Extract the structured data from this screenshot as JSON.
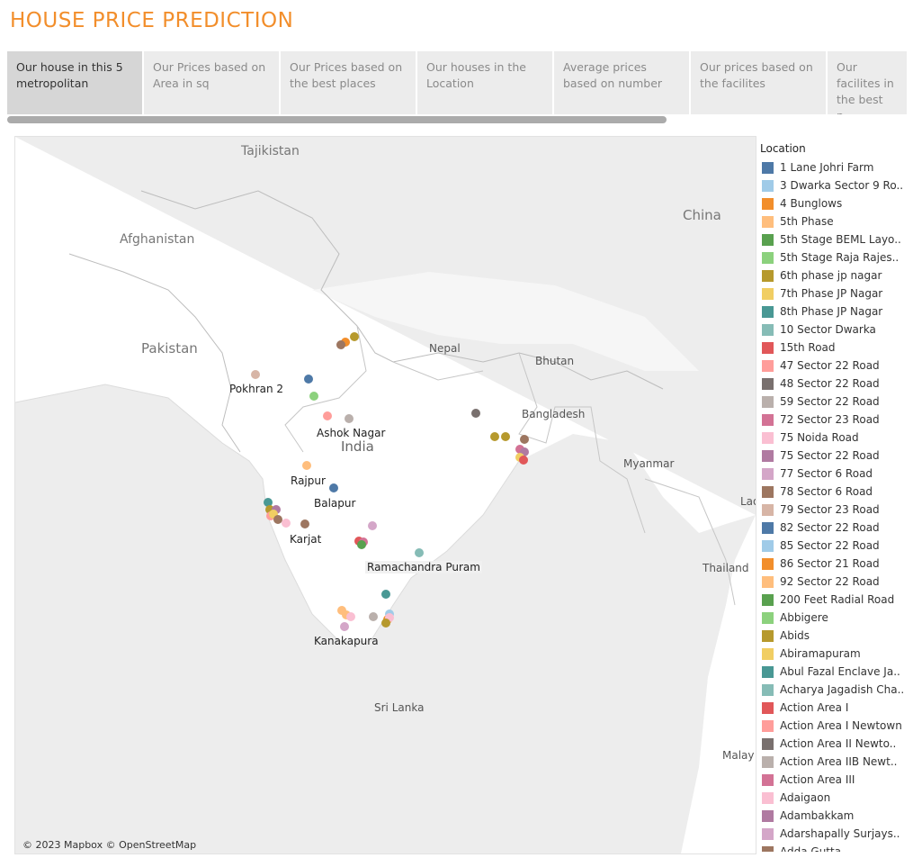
{
  "title": "HOUSE PRICE PREDICTION",
  "tabs": [
    {
      "label": "Our house in this 5 metropolitan",
      "active": true
    },
    {
      "label": "Our Prices based on Area in sq",
      "active": false
    },
    {
      "label": "Our Prices based on the best places",
      "active": false
    },
    {
      "label": "Our houses in the Location",
      "active": false
    },
    {
      "label": "Average prices based on number",
      "active": false
    },
    {
      "label": "Our prices based on the facilites",
      "active": false
    },
    {
      "label": "Our facilites in the best p...",
      "active": false
    }
  ],
  "map": {
    "countries": {
      "tajikistan": "Tajikistan",
      "afghanistan": "Afghanistan",
      "pakistan": "Pakistan",
      "china": "China",
      "nepal": "Nepal",
      "bhutan": "Bhutan",
      "bangladesh": "Bangladesh",
      "india": "India",
      "myanmar": "Myanmar",
      "thailand": "Thailand",
      "sri_lanka": "Sri Lanka",
      "lao": "Lao",
      "malay": "Malay"
    },
    "cities": {
      "pokhran": "Pokhran 2",
      "ashok_nagar": "Ashok Nagar",
      "rajpur": "Rajpur",
      "balapur": "Balapur",
      "karjat": "Karjat",
      "ramachandra_puram": "Ramachandra Puram",
      "kanakapura": "Kanakapura"
    },
    "attribution": "© 2023 Mapbox © OpenStreetMap"
  },
  "legend": {
    "title": "Location",
    "items": [
      {
        "label": "1 Lane Johri Farm",
        "color": "#4e79a7"
      },
      {
        "label": "3 Dwarka Sector 9 Ro..",
        "color": "#a0cbe8"
      },
      {
        "label": "4 Bunglows",
        "color": "#f28e2b"
      },
      {
        "label": "5th Phase",
        "color": "#ffbe7d"
      },
      {
        "label": "5th Stage BEML Layo..",
        "color": "#59a14f"
      },
      {
        "label": "5th Stage Raja Rajes..",
        "color": "#8cd17d"
      },
      {
        "label": "6th phase jp nagar",
        "color": "#b6992d"
      },
      {
        "label": "7th Phase JP Nagar",
        "color": "#f1ce63"
      },
      {
        "label": "8th Phase JP Nagar",
        "color": "#499894"
      },
      {
        "label": "10 Sector Dwarka",
        "color": "#86bcb6"
      },
      {
        "label": "15th Road",
        "color": "#e15759"
      },
      {
        "label": "47 Sector 22 Road",
        "color": "#ff9d9a"
      },
      {
        "label": "48 Sector 22 Road",
        "color": "#79706e"
      },
      {
        "label": "59 Sector 22 Road",
        "color": "#bab0ac"
      },
      {
        "label": "72 Sector 23 Road",
        "color": "#d37295"
      },
      {
        "label": "75 Noida Road",
        "color": "#fabfd2"
      },
      {
        "label": "75 Sector 22 Road",
        "color": "#b07aa1"
      },
      {
        "label": "77 Sector 6 Road",
        "color": "#d4a6c8"
      },
      {
        "label": "78 Sector 6 Road",
        "color": "#9d7660"
      },
      {
        "label": "79 Sector 23 Road",
        "color": "#d7b5a6"
      },
      {
        "label": "82 Sector 22 Road",
        "color": "#4e79a7"
      },
      {
        "label": "85 Sector 22 Road",
        "color": "#a0cbe8"
      },
      {
        "label": "86 Sector 21 Road",
        "color": "#f28e2b"
      },
      {
        "label": "92 Sector 22 Road",
        "color": "#ffbe7d"
      },
      {
        "label": "200 Feet Radial Road",
        "color": "#59a14f"
      },
      {
        "label": "Abbigere",
        "color": "#8cd17d"
      },
      {
        "label": "Abids",
        "color": "#b6992d"
      },
      {
        "label": "Abiramapuram",
        "color": "#f1ce63"
      },
      {
        "label": "Abul Fazal Enclave Ja..",
        "color": "#499894"
      },
      {
        "label": "Acharya Jagadish Cha..",
        "color": "#86bcb6"
      },
      {
        "label": "Action Area I",
        "color": "#e15759"
      },
      {
        "label": "Action Area I Newtown",
        "color": "#ff9d9a"
      },
      {
        "label": "Action Area II Newto..",
        "color": "#79706e"
      },
      {
        "label": "Action Area IIB Newt..",
        "color": "#bab0ac"
      },
      {
        "label": "Action Area III",
        "color": "#d37295"
      },
      {
        "label": "Adaigaon",
        "color": "#fabfd2"
      },
      {
        "label": "Adambakkam",
        "color": "#b07aa1"
      },
      {
        "label": "Adarshapally Surjays..",
        "color": "#d4a6c8"
      },
      {
        "label": "Adda Gutta",
        "color": "#9d7660"
      }
    ]
  }
}
